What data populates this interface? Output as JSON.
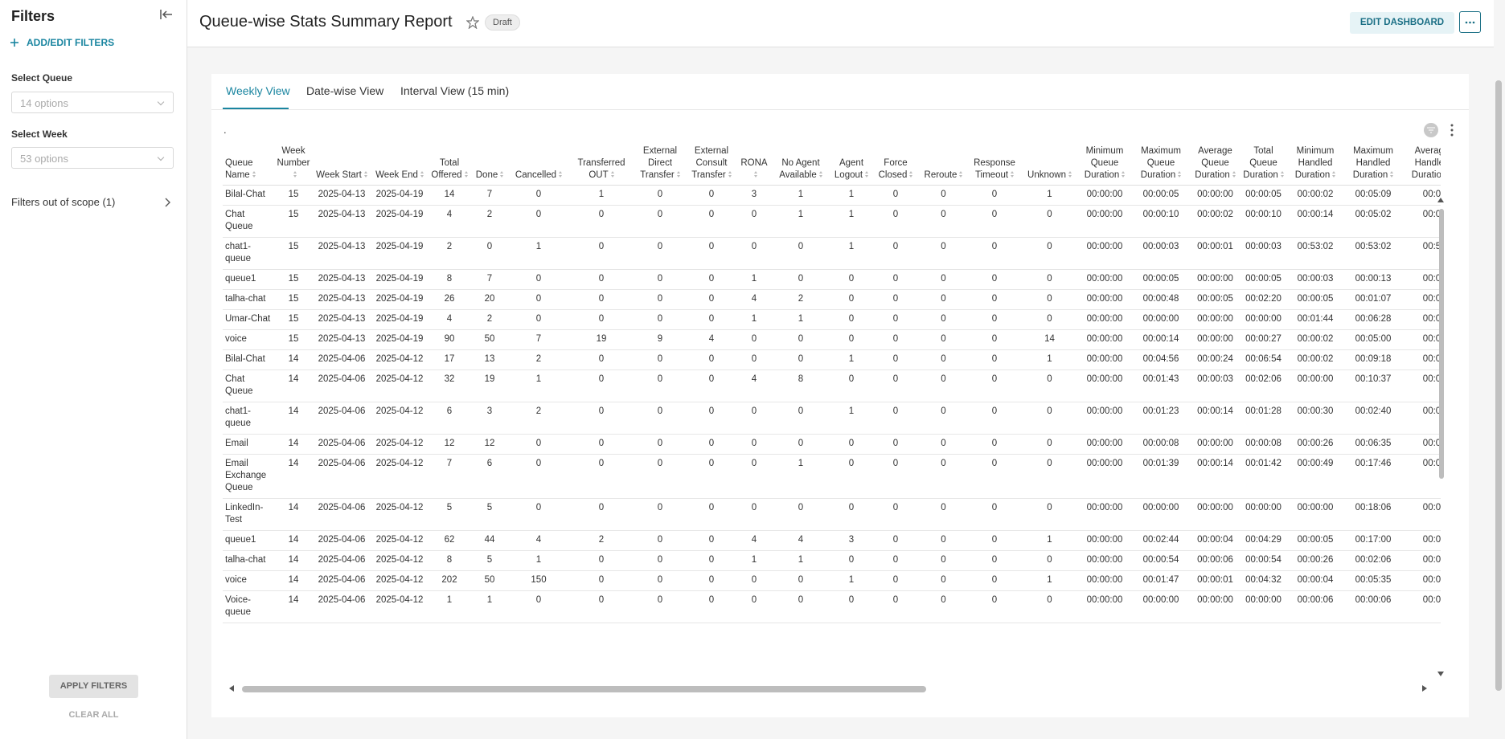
{
  "sidebar": {
    "title": "Filters",
    "add_filters": "ADD/EDIT FILTERS",
    "filters": [
      {
        "label": "Select Queue",
        "placeholder": "14 options"
      },
      {
        "label": "Select Week",
        "placeholder": "53 options"
      }
    ],
    "out_of_scope": "Filters out of scope (1)",
    "apply": "APPLY FILTERS",
    "clear": "CLEAR ALL"
  },
  "header": {
    "title": "Queue-wise Stats Summary Report",
    "status": "Draft",
    "edit": "EDIT DASHBOARD"
  },
  "tabs": [
    "Weekly View",
    "Date-wise View",
    "Interval View (15 min)"
  ],
  "table": {
    "caption": ".",
    "columns": [
      "Queue Name",
      "Week Number",
      "Week Start",
      "Week End",
      "Total Offered",
      "Done",
      "Cancelled",
      "Transferred OUT",
      "External Direct Transfer",
      "External Consult Transfer",
      "RONA",
      "No Agent Available",
      "Agent Logout",
      "Force Closed",
      "Reroute",
      "Response Timeout",
      "Unknown",
      "Minimum Queue Duration",
      "Maximum Queue Duration",
      "Average Queue Duration",
      "Total Queue Duration",
      "Minimum Handled Duration",
      "Maximum Handled Duration",
      "Average Handled Duration"
    ],
    "rows": [
      [
        "Bilal-Chat",
        15,
        "2025-04-13",
        "2025-04-19",
        14,
        7,
        0,
        1,
        0,
        0,
        3,
        1,
        1,
        0,
        0,
        0,
        1,
        "00:00:00",
        "00:00:05",
        "00:00:00",
        "00:00:05",
        "00:00:02",
        "00:05:09",
        "00:0"
      ],
      [
        "Chat Queue",
        15,
        "2025-04-13",
        "2025-04-19",
        4,
        2,
        0,
        0,
        0,
        0,
        0,
        1,
        1,
        0,
        0,
        0,
        0,
        "00:00:00",
        "00:00:10",
        "00:00:02",
        "00:00:10",
        "00:00:14",
        "00:05:02",
        "00:0"
      ],
      [
        "chat1-queue",
        15,
        "2025-04-13",
        "2025-04-19",
        2,
        0,
        1,
        0,
        0,
        0,
        0,
        0,
        1,
        0,
        0,
        0,
        0,
        "00:00:00",
        "00:00:03",
        "00:00:01",
        "00:00:03",
        "00:53:02",
        "00:53:02",
        "00:5"
      ],
      [
        "queue1",
        15,
        "2025-04-13",
        "2025-04-19",
        8,
        7,
        0,
        0,
        0,
        0,
        1,
        0,
        0,
        0,
        0,
        0,
        0,
        "00:00:00",
        "00:00:05",
        "00:00:00",
        "00:00:05",
        "00:00:03",
        "00:00:13",
        "00:0"
      ],
      [
        "talha-chat",
        15,
        "2025-04-13",
        "2025-04-19",
        26,
        20,
        0,
        0,
        0,
        0,
        4,
        2,
        0,
        0,
        0,
        0,
        0,
        "00:00:00",
        "00:00:48",
        "00:00:05",
        "00:02:20",
        "00:00:05",
        "00:01:07",
        "00:0"
      ],
      [
        "Umar-Chat",
        15,
        "2025-04-13",
        "2025-04-19",
        4,
        2,
        0,
        0,
        0,
        0,
        1,
        1,
        0,
        0,
        0,
        0,
        0,
        "00:00:00",
        "00:00:00",
        "00:00:00",
        "00:00:00",
        "00:01:44",
        "00:06:28",
        "00:0"
      ],
      [
        "voice",
        15,
        "2025-04-13",
        "2025-04-19",
        90,
        50,
        7,
        19,
        9,
        4,
        0,
        0,
        0,
        0,
        0,
        0,
        14,
        "00:00:00",
        "00:00:14",
        "00:00:00",
        "00:00:27",
        "00:00:02",
        "00:05:00",
        "00:0"
      ],
      [
        "Bilal-Chat",
        14,
        "2025-04-06",
        "2025-04-12",
        17,
        13,
        2,
        0,
        0,
        0,
        0,
        0,
        1,
        0,
        0,
        0,
        1,
        "00:00:00",
        "00:04:56",
        "00:00:24",
        "00:06:54",
        "00:00:02",
        "00:09:18",
        "00:0"
      ],
      [
        "Chat Queue",
        14,
        "2025-04-06",
        "2025-04-12",
        32,
        19,
        1,
        0,
        0,
        0,
        4,
        8,
        0,
        0,
        0,
        0,
        0,
        "00:00:00",
        "00:01:43",
        "00:00:03",
        "00:02:06",
        "00:00:00",
        "00:10:37",
        "00:0"
      ],
      [
        "chat1-queue",
        14,
        "2025-04-06",
        "2025-04-12",
        6,
        3,
        2,
        0,
        0,
        0,
        0,
        0,
        1,
        0,
        0,
        0,
        0,
        "00:00:00",
        "00:01:23",
        "00:00:14",
        "00:01:28",
        "00:00:30",
        "00:02:40",
        "00:0"
      ],
      [
        "Email",
        14,
        "2025-04-06",
        "2025-04-12",
        12,
        12,
        0,
        0,
        0,
        0,
        0,
        0,
        0,
        0,
        0,
        0,
        0,
        "00:00:00",
        "00:00:08",
        "00:00:00",
        "00:00:08",
        "00:00:26",
        "00:06:35",
        "00:0"
      ],
      [
        "Email Exchange Queue",
        14,
        "2025-04-06",
        "2025-04-12",
        7,
        6,
        0,
        0,
        0,
        0,
        0,
        1,
        0,
        0,
        0,
        0,
        0,
        "00:00:00",
        "00:01:39",
        "00:00:14",
        "00:01:42",
        "00:00:49",
        "00:17:46",
        "00:0"
      ],
      [
        "LinkedIn-Test",
        14,
        "2025-04-06",
        "2025-04-12",
        5,
        5,
        0,
        0,
        0,
        0,
        0,
        0,
        0,
        0,
        0,
        0,
        0,
        "00:00:00",
        "00:00:00",
        "00:00:00",
        "00:00:00",
        "00:00:00",
        "00:18:06",
        "00:0"
      ],
      [
        "queue1",
        14,
        "2025-04-06",
        "2025-04-12",
        62,
        44,
        4,
        2,
        0,
        0,
        4,
        4,
        3,
        0,
        0,
        0,
        1,
        "00:00:00",
        "00:02:44",
        "00:00:04",
        "00:04:29",
        "00:00:05",
        "00:17:00",
        "00:0"
      ],
      [
        "talha-chat",
        14,
        "2025-04-06",
        "2025-04-12",
        8,
        5,
        1,
        0,
        0,
        0,
        1,
        1,
        0,
        0,
        0,
        0,
        0,
        "00:00:00",
        "00:00:54",
        "00:00:06",
        "00:00:54",
        "00:00:26",
        "00:02:06",
        "00:0"
      ],
      [
        "voice",
        14,
        "2025-04-06",
        "2025-04-12",
        202,
        50,
        150,
        0,
        0,
        0,
        0,
        0,
        1,
        0,
        0,
        0,
        1,
        "00:00:00",
        "00:01:47",
        "00:00:01",
        "00:04:32",
        "00:00:04",
        "00:05:35",
        "00:0"
      ],
      [
        "Voice-queue",
        14,
        "2025-04-06",
        "2025-04-12",
        1,
        1,
        0,
        0,
        0,
        0,
        0,
        0,
        0,
        0,
        0,
        0,
        0,
        "00:00:00",
        "00:00:00",
        "00:00:00",
        "00:00:00",
        "00:00:06",
        "00:00:06",
        "00:0"
      ]
    ]
  }
}
